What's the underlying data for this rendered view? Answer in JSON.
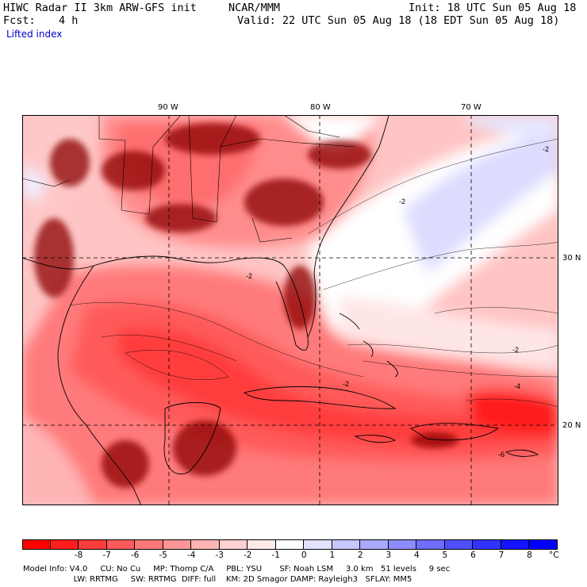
{
  "header": {
    "title": "HIWC Radar II 3km ARW-GFS init",
    "org": "NCAR/MMM",
    "init": "Init: 18 UTC Sun 05 Aug 18",
    "fcst_label": "Fcst:",
    "fcst_value": "4 h",
    "valid": "Valid: 22 UTC Sun 05 Aug 18 (18 EDT Sun 05 Aug 18)",
    "field": "Lifted index"
  },
  "map": {
    "lon_labels": [
      "90 W",
      "80 W",
      "70 W"
    ],
    "lat_labels": [
      "30 N",
      "20 N"
    ],
    "contour_labels": [
      "-2",
      "-2",
      "-2",
      "-2",
      "-2",
      "-4",
      "-6"
    ],
    "colors": {
      "deep_red": "#ff1e1e",
      "red": "#ff4b4b",
      "salmon": "#ff7a7a",
      "pink": "#ffb3b3",
      "light_pink": "#ffd9d9",
      "white": "#ffffff",
      "light_blue": "#dcdcff",
      "blue": "#b4b4ff",
      "storm": "#8b0000"
    }
  },
  "colorbar": {
    "ticks": [
      "-8",
      "-7",
      "-6",
      "-5",
      "-4",
      "-3",
      "-2",
      "-1",
      "0",
      "1",
      "2",
      "3",
      "4",
      "5",
      "6",
      "7",
      "8"
    ],
    "unit": "°C",
    "colors": [
      "#ff0000",
      "#ff1e1e",
      "#ff3c3c",
      "#ff5a5a",
      "#ff7878",
      "#ff9696",
      "#ffb4b4",
      "#ffd2d2",
      "#ffeaea",
      "#ffffff",
      "#e2e2ff",
      "#c8c8ff",
      "#aaaaff",
      "#8c8cff",
      "#6e6eff",
      "#5050ff",
      "#3232ff",
      "#1414ff",
      "#0000ff"
    ]
  },
  "footer": {
    "line1": "Model Info: V4.0     CU: No Cu     MP: Thomp C/A     PBL: YSU       SF: Noah LSM     3.0 km   51 levels     9 sec",
    "line2": "                    LW: RRTMG     SW: RRTMG  DIFF: full    KM: 2D Smagor DAMP: Rayleigh3   SFLAY: MM5"
  }
}
